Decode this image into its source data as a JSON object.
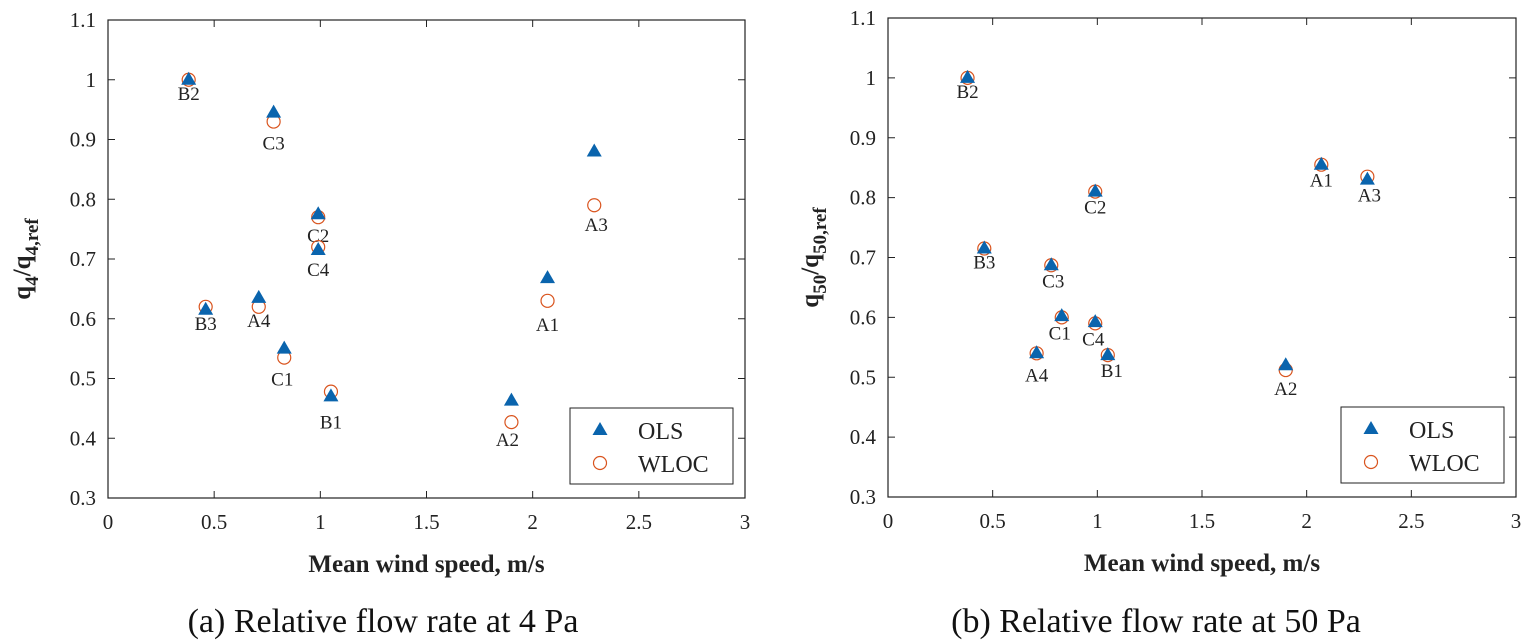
{
  "chart_data": [
    {
      "type": "scatter",
      "caption": "(a) Relative flow rate at 4 Pa",
      "xlabel": "Mean wind speed, m/s",
      "ylabel": {
        "base1": "q",
        "sub1": "4",
        "slash": "/",
        "base2": "q",
        "sub2": "4,ref"
      },
      "xlim": [
        0,
        3
      ],
      "ylim": [
        0.3,
        1.1
      ],
      "xticks": [
        "0",
        "0.5",
        "1",
        "1.5",
        "2",
        "2.5",
        "3"
      ],
      "yticks": [
        "0.3",
        "0.4",
        "0.5",
        "0.6",
        "0.7",
        "0.8",
        "0.9",
        "1",
        "1.1"
      ],
      "legend": {
        "position": "bottom-right",
        "entries": [
          "OLS",
          "WLOC"
        ]
      },
      "points": [
        {
          "label": "B2",
          "x": 0.38,
          "ols": 1.0,
          "wloc": 1.0
        },
        {
          "label": "C3",
          "x": 0.78,
          "ols": 0.945,
          "wloc": 0.93
        },
        {
          "label": "C2",
          "x": 0.99,
          "ols": 0.775,
          "wloc": 0.77
        },
        {
          "label": "C4",
          "x": 0.99,
          "ols": 0.715,
          "wloc": 0.72
        },
        {
          "label": "B3",
          "x": 0.46,
          "ols": 0.615,
          "wloc": 0.62
        },
        {
          "label": "A4",
          "x": 0.71,
          "ols": 0.635,
          "wloc": 0.62
        },
        {
          "label": "C1",
          "x": 0.83,
          "ols": 0.55,
          "wloc": 0.535
        },
        {
          "label": "B1",
          "x": 1.05,
          "ols": 0.47,
          "wloc": 0.478
        },
        {
          "label": "A2",
          "x": 1.9,
          "ols": 0.463,
          "wloc": 0.427
        },
        {
          "label": "A1",
          "x": 2.07,
          "ols": 0.668,
          "wloc": 0.63
        },
        {
          "label": "A3",
          "x": 2.29,
          "ols": 0.88,
          "wloc": 0.79
        }
      ]
    },
    {
      "type": "scatter",
      "caption": "(b) Relative flow rate at 50 Pa",
      "xlabel": "Mean wind speed, m/s",
      "ylabel": {
        "base1": "q",
        "sub1": "50",
        "slash": "/",
        "base2": "q",
        "sub2": "50,ref"
      },
      "xlim": [
        0,
        3
      ],
      "ylim": [
        0.3,
        1.1
      ],
      "xticks": [
        "0",
        "0.5",
        "1",
        "1.5",
        "2",
        "2.5",
        "3"
      ],
      "yticks": [
        "0.3",
        "0.4",
        "0.5",
        "0.6",
        "0.7",
        "0.8",
        "0.9",
        "1",
        "1.1"
      ],
      "legend": {
        "position": "bottom-right",
        "entries": [
          "OLS",
          "WLOC"
        ]
      },
      "points": [
        {
          "label": "B2",
          "x": 0.38,
          "ols": 1.0,
          "wloc": 1.0
        },
        {
          "label": "A1",
          "x": 2.07,
          "ols": 0.855,
          "wloc": 0.855
        },
        {
          "label": "A3",
          "x": 2.29,
          "ols": 0.83,
          "wloc": 0.835
        },
        {
          "label": "C2",
          "x": 0.99,
          "ols": 0.81,
          "wloc": 0.81
        },
        {
          "label": "B3",
          "x": 0.46,
          "ols": 0.715,
          "wloc": 0.715
        },
        {
          "label": "C3",
          "x": 0.78,
          "ols": 0.687,
          "wloc": 0.687
        },
        {
          "label": "C1",
          "x": 0.83,
          "ols": 0.602,
          "wloc": 0.6
        },
        {
          "label": "C4",
          "x": 0.99,
          "ols": 0.592,
          "wloc": 0.59
        },
        {
          "label": "A4",
          "x": 0.71,
          "ols": 0.54,
          "wloc": 0.54
        },
        {
          "label": "B1",
          "x": 1.05,
          "ols": 0.537,
          "wloc": 0.537
        },
        {
          "label": "A2",
          "x": 1.9,
          "ols": 0.52,
          "wloc": 0.512
        }
      ]
    }
  ]
}
